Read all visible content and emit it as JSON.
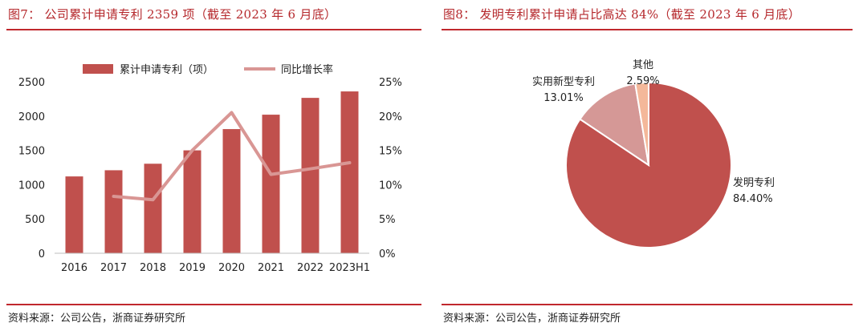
{
  "left": {
    "title": "图7： 公司累计申请专利 2359 项（截至 2023 年 6 月底）",
    "source": "资料来源：公司公告，浙商证券研究所",
    "chart_data": {
      "type": "bar",
      "title": "公司累计申请专利 2359 项（截至 2023 年 6 月底）",
      "categories": [
        "2016",
        "2017",
        "2018",
        "2019",
        "2020",
        "2021",
        "2022",
        "2023H1"
      ],
      "series": [
        {
          "name": "累计申请专利（项）",
          "type": "bar",
          "axis": "left",
          "values": [
            1120,
            1210,
            1305,
            1500,
            1810,
            2020,
            2265,
            2359
          ],
          "color": "#c0504d"
        },
        {
          "name": "同比增长率",
          "type": "line",
          "axis": "right",
          "values": [
            null,
            8.3,
            7.8,
            15.0,
            20.5,
            11.5,
            12.3,
            13.2
          ],
          "color": "#d99694"
        }
      ],
      "y_left": {
        "ylim": [
          0,
          2500
        ],
        "ticks": [
          "0",
          "500",
          "1000",
          "1500",
          "2000",
          "2500"
        ]
      },
      "y_right": {
        "ylim": [
          0,
          25
        ],
        "ticks": [
          "0%",
          "5%",
          "10%",
          "15%",
          "20%",
          "25%"
        ]
      },
      "legend_position": "top",
      "xlabel": "",
      "ylabel": ""
    }
  },
  "right": {
    "title": "图8： 发明专利累计申请占比高达 84%（截至 2023 年 6 月底）",
    "source": "资料来源：公司公告，浙商证券研究所",
    "chart_data": {
      "type": "pie",
      "title": "发明专利累计申请占比高达 84%（截至 2023 年 6 月底）",
      "slices": [
        {
          "label": "发明专利",
          "value": 84.4,
          "display": "84.40%",
          "color": "#c0504d"
        },
        {
          "label": "实用新型专利",
          "value": 13.01,
          "display": "13.01%",
          "color": "#d59896"
        },
        {
          "label": "其他",
          "value": 2.59,
          "display": "2.59%",
          "color": "#f4b89a"
        }
      ]
    }
  }
}
